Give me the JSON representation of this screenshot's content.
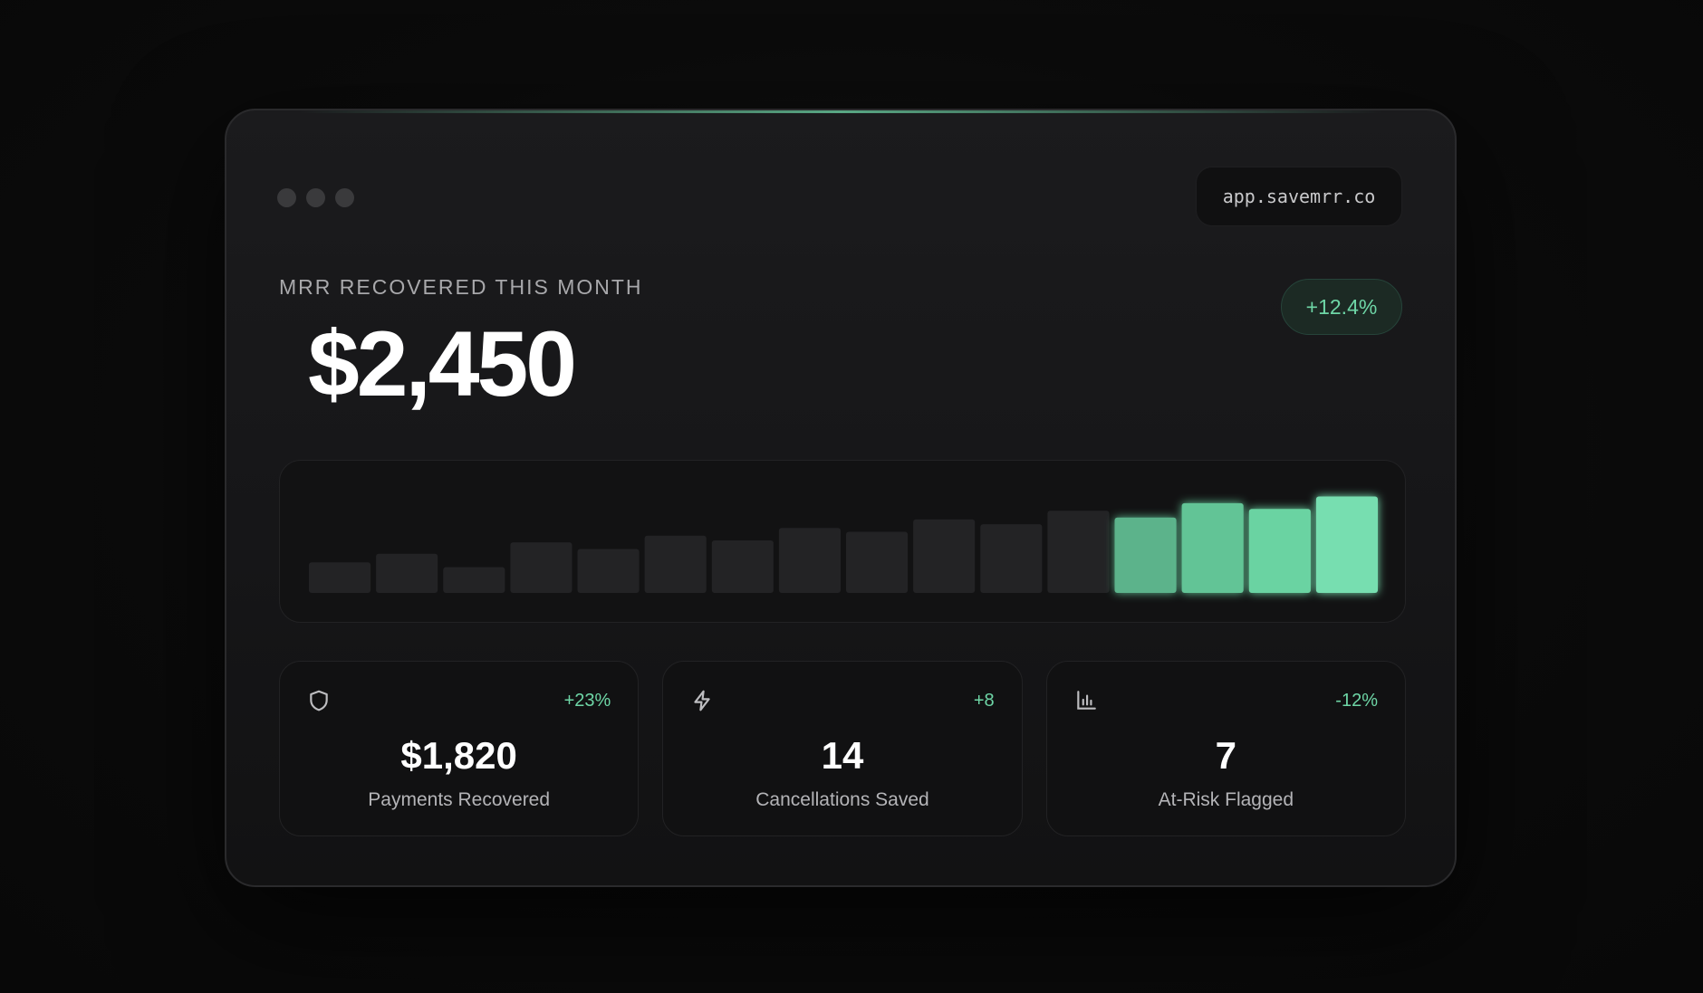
{
  "window": {
    "url": "app.savemrr.co"
  },
  "hero": {
    "label": "MRR RECOVERED THIS MONTH",
    "value": "$2,450",
    "change": "+12.4%"
  },
  "colors": {
    "accent": "#6ed6a6",
    "bar_muted": "#232325"
  },
  "chart_data": {
    "type": "bar",
    "categories": [
      "",
      "",
      "",
      "",
      "",
      "",
      "",
      "",
      "",
      "",
      "",
      "",
      "",
      "",
      "",
      ""
    ],
    "values": [
      32,
      41,
      27,
      53,
      46,
      60,
      55,
      68,
      64,
      77,
      72,
      86,
      79,
      94,
      88,
      101
    ],
    "highlighted_from_index": 12,
    "ylim": [
      0,
      110
    ],
    "title": "",
    "xlabel": "",
    "ylabel": ""
  },
  "stats": [
    {
      "icon": "shield-icon",
      "change": "+23%",
      "value": "$1,820",
      "label": "Payments Recovered"
    },
    {
      "icon": "lightning-icon",
      "change": "+8",
      "value": "14",
      "label": "Cancellations Saved"
    },
    {
      "icon": "bar-chart-icon",
      "change": "-12%",
      "value": "7",
      "label": "At-Risk Flagged"
    }
  ]
}
